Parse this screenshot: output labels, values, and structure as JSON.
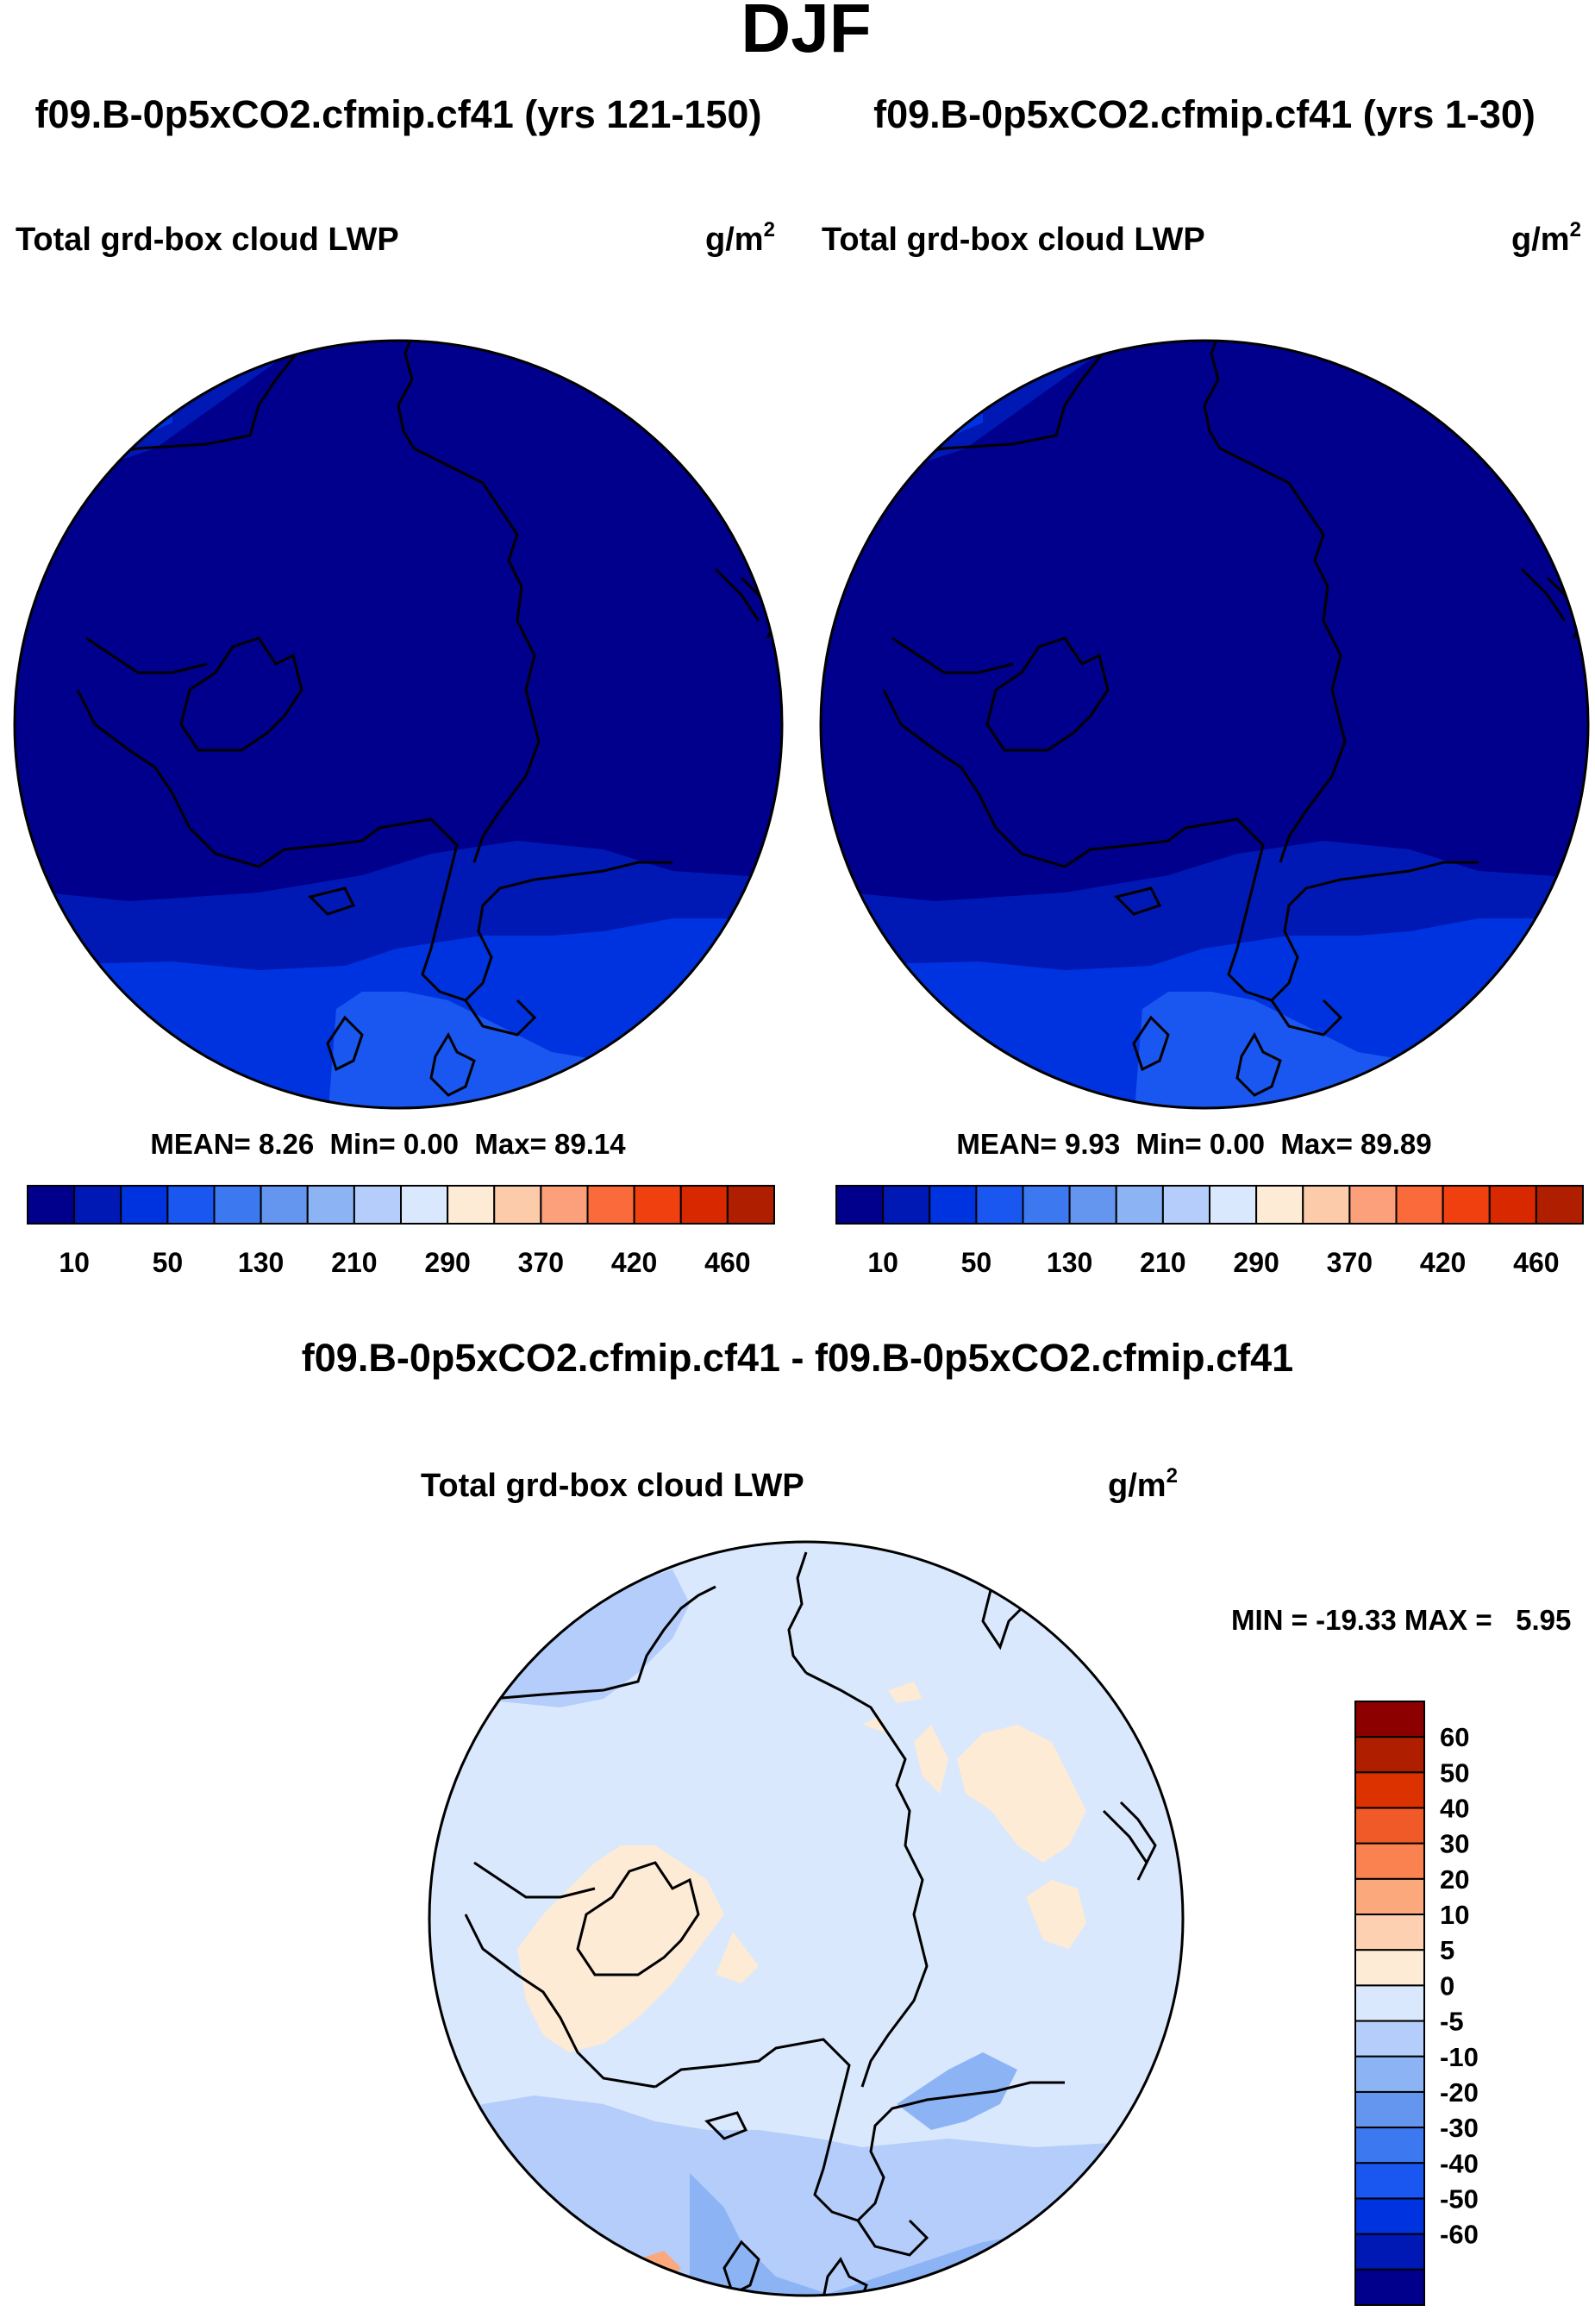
{
  "page_title": "DJF",
  "colors": {
    "seq": [
      "#00008c",
      "#0019b4",
      "#0033e0",
      "#1a57f0",
      "#3c78f0",
      "#6496f0",
      "#8cb4f5",
      "#b4cdfa",
      "#d9e8fc",
      "#fdebd6",
      "#fbcbaa",
      "#fba07a",
      "#fa6a3a",
      "#f04010",
      "#d82800",
      "#b01e00",
      "#8c0000"
    ],
    "diff": [
      "#8c0000",
      "#b01e00",
      "#dc3200",
      "#f05a28",
      "#fa8250",
      "#fba87d",
      "#fcd0b0",
      "#fdebd6",
      "#d9e8fc",
      "#b4cdfa",
      "#8cb4f5",
      "#6496f0",
      "#3c78f0",
      "#1a57f0",
      "#0033e0",
      "#0019b4",
      "#00008c"
    ]
  },
  "chart_data": [
    {
      "id": "left",
      "type": "heatmap",
      "run_title": "f09.B-0p5xCO2.cfmip.cf41 (yrs 121-150)",
      "variable": "Total grd-box cloud LWP",
      "units": "g/m",
      "units_exp": "2",
      "stats": {
        "mean_label": "MEAN=",
        "mean": "8.26",
        "min_label": "Min=",
        "min": "0.00",
        "max_label": "Max=",
        "max": "89.14"
      },
      "colorbar_ticks": [
        "10",
        "50",
        "130",
        "210",
        "290",
        "370",
        "420",
        "460"
      ],
      "projection": "north-polar-stereographic",
      "field_summary": {
        "arctic_interior": "0-10",
        "n_atlantic": "10-50",
        "n_pacific": "10-30"
      }
    },
    {
      "id": "right",
      "type": "heatmap",
      "run_title": "f09.B-0p5xCO2.cfmip.cf41 (yrs 1-30)",
      "variable": "Total grd-box cloud LWP",
      "units": "g/m",
      "units_exp": "2",
      "stats": {
        "mean_label": "MEAN=",
        "mean": "9.93",
        "min_label": "Min=",
        "min": "0.00",
        "max_label": "Max=",
        "max": "89.89"
      },
      "colorbar_ticks": [
        "10",
        "50",
        "130",
        "210",
        "290",
        "370",
        "420",
        "460"
      ],
      "projection": "north-polar-stereographic",
      "field_summary": {
        "arctic_interior": "0-10",
        "n_atlantic": "10-50",
        "n_pacific": "10-30"
      }
    },
    {
      "id": "diff",
      "type": "heatmap",
      "run_title": "f09.B-0p5xCO2.cfmip.cf41 - f09.B-0p5xCO2.cfmip.cf41",
      "variable": "Total grd-box cloud LWP",
      "units": "g/m",
      "units_exp": "2",
      "minmax_text": "MIN = -19.33 MAX =   5.95",
      "min": -19.33,
      "max": 5.95,
      "colorbar_ticks": [
        "60",
        "50",
        "40",
        "30",
        "20",
        "10",
        "5",
        "0",
        "-5",
        "-10",
        "-20",
        "-30",
        "-40",
        "-50",
        "-60"
      ],
      "projection": "north-polar-stereographic",
      "field_summary": {
        "dominant": "-5-0",
        "positive_patches": "0-5",
        "n_atlantic": "-10--5",
        "n_pacific": "-10--5"
      }
    }
  ]
}
